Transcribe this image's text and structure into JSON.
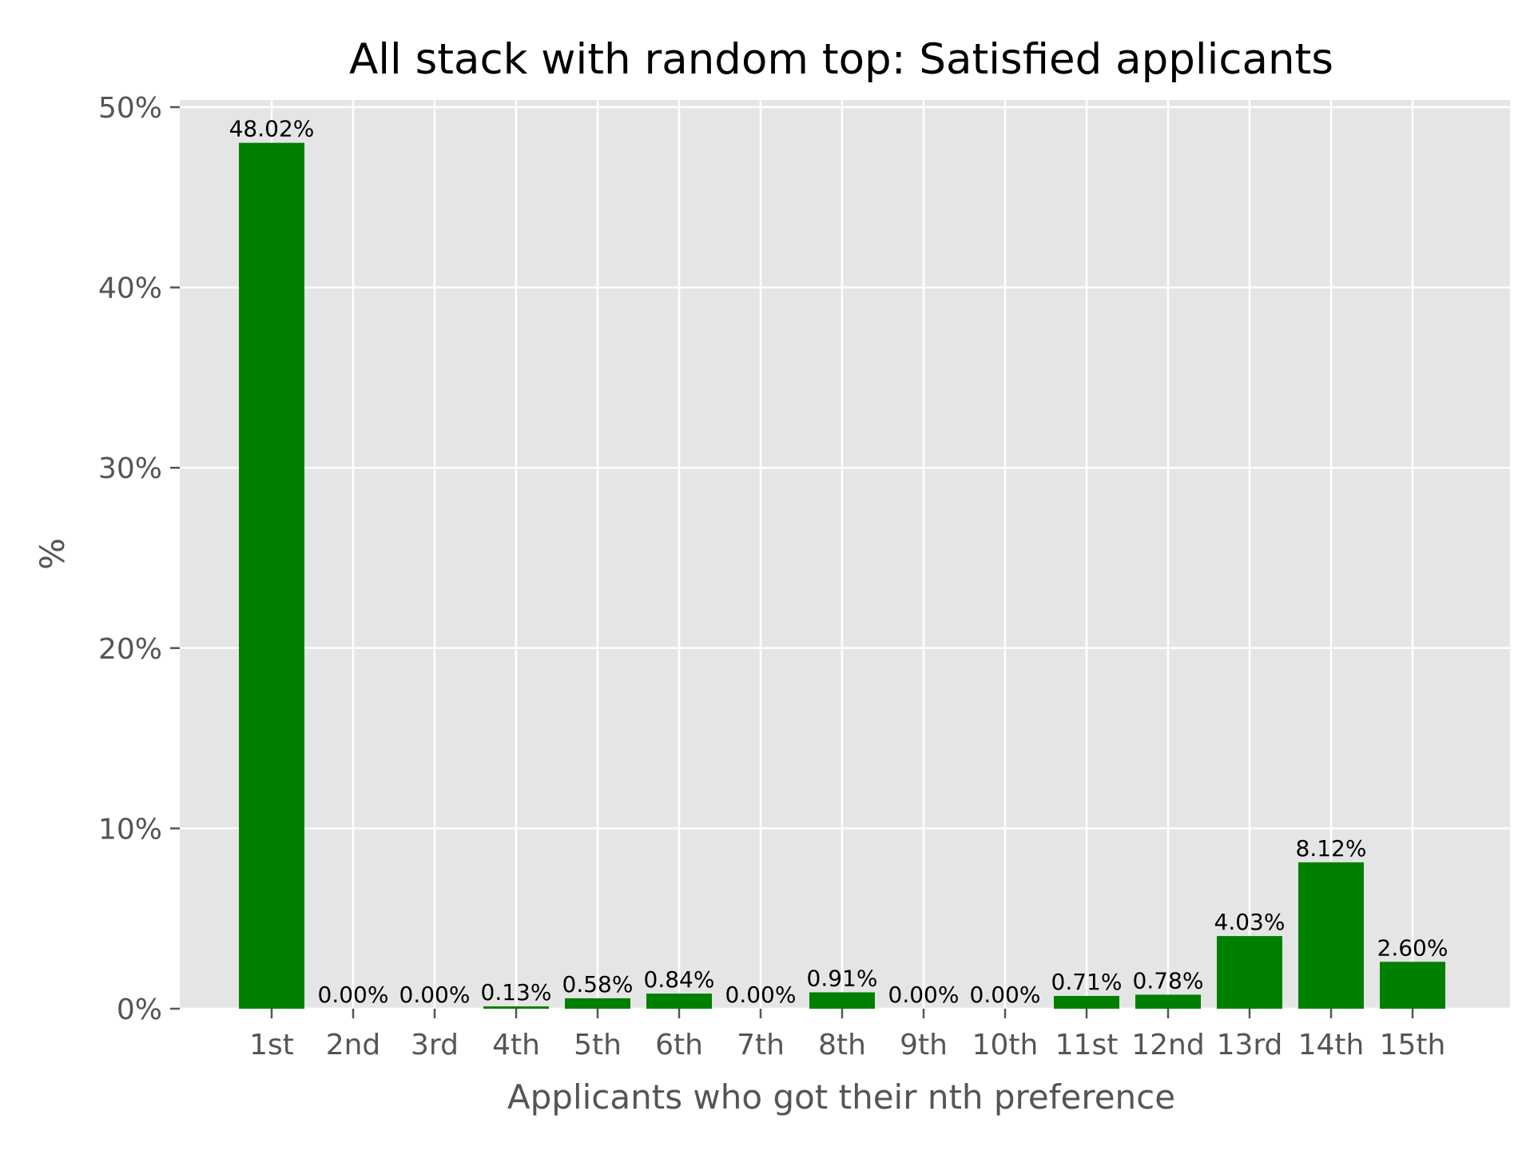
{
  "chart_data": {
    "type": "bar",
    "title": "All stack with random top: Satisfied applicants",
    "xlabel": "Applicants who got their nth preference",
    "ylabel": "%",
    "categories": [
      "1st",
      "2nd",
      "3rd",
      "4th",
      "5th",
      "6th",
      "7th",
      "8th",
      "9th",
      "10th",
      "11st",
      "12nd",
      "13rd",
      "14th",
      "15th"
    ],
    "values": [
      48.02,
      0.0,
      0.0,
      0.13,
      0.58,
      0.84,
      0.0,
      0.91,
      0.0,
      0.0,
      0.71,
      0.78,
      4.03,
      8.12,
      2.6
    ],
    "value_labels": [
      "48.02%",
      "0.00%",
      "0.00%",
      "0.13%",
      "0.58%",
      "0.84%",
      "0.00%",
      "0.91%",
      "0.00%",
      "0.00%",
      "0.71%",
      "0.78%",
      "4.03%",
      "8.12%",
      "2.60%"
    ],
    "yticks": [
      0,
      10,
      20,
      30,
      40,
      50
    ],
    "ytick_labels": [
      "0%",
      "10%",
      "20%",
      "30%",
      "40%",
      "50%"
    ],
    "ylim": [
      0,
      50.4
    ],
    "grid": true,
    "colors": {
      "bar": "#008000",
      "plot_background": "#e5e5e5",
      "grid": "#ffffff"
    }
  }
}
